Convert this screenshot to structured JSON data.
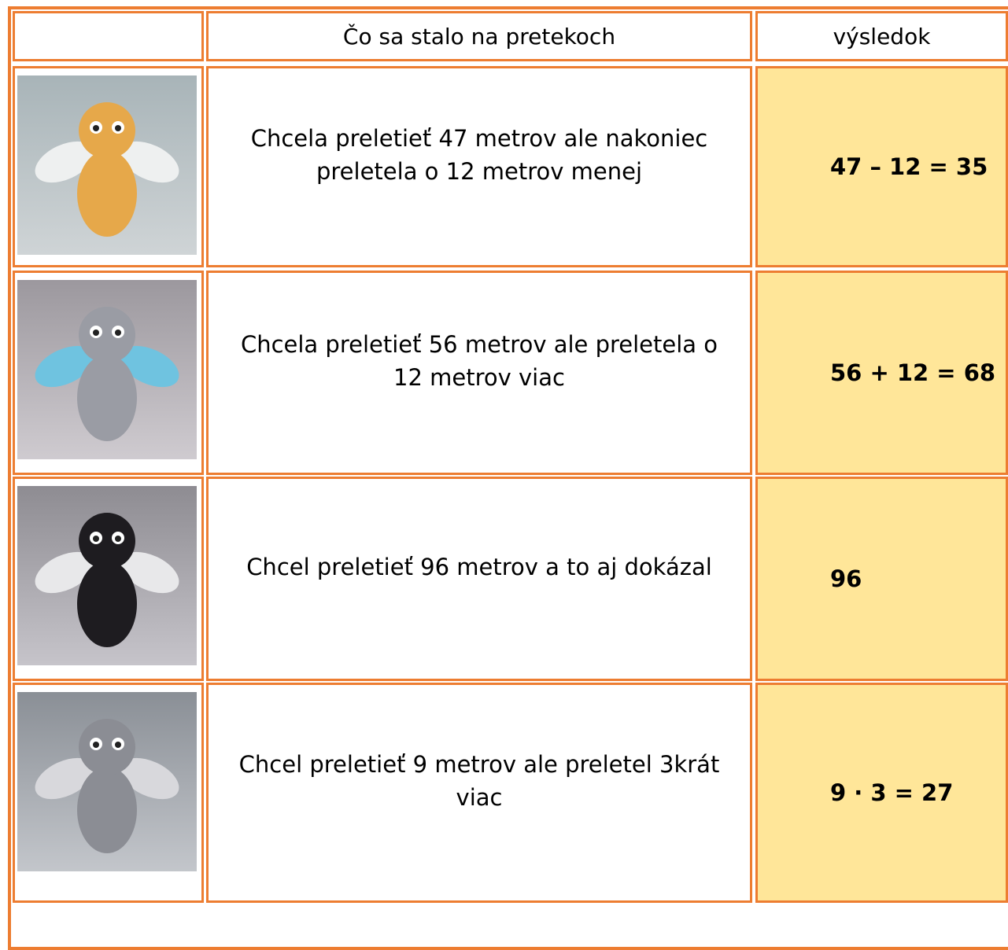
{
  "table": {
    "header": [
      "Čo sa stalo na pretekoch",
      "výsledok"
    ],
    "rows": [
      {
        "description": "Chcela preletieť 47 metrov ale nakoniec preletela o 12 metrov menej",
        "result": "47 – 12 = 35"
      },
      {
        "description": "Chcela preletieť 56 metrov ale preletela o 12 metrov viac",
        "result": "56 + 12 = 68"
      },
      {
        "description": "Chcel preletieť 96 metrov a to aj dokázal",
        "result": "96"
      },
      {
        "description": "Chcel preletieť 9 metrov ale preletel 3krát viac",
        "result": "9 · 3 = 27"
      }
    ]
  }
}
